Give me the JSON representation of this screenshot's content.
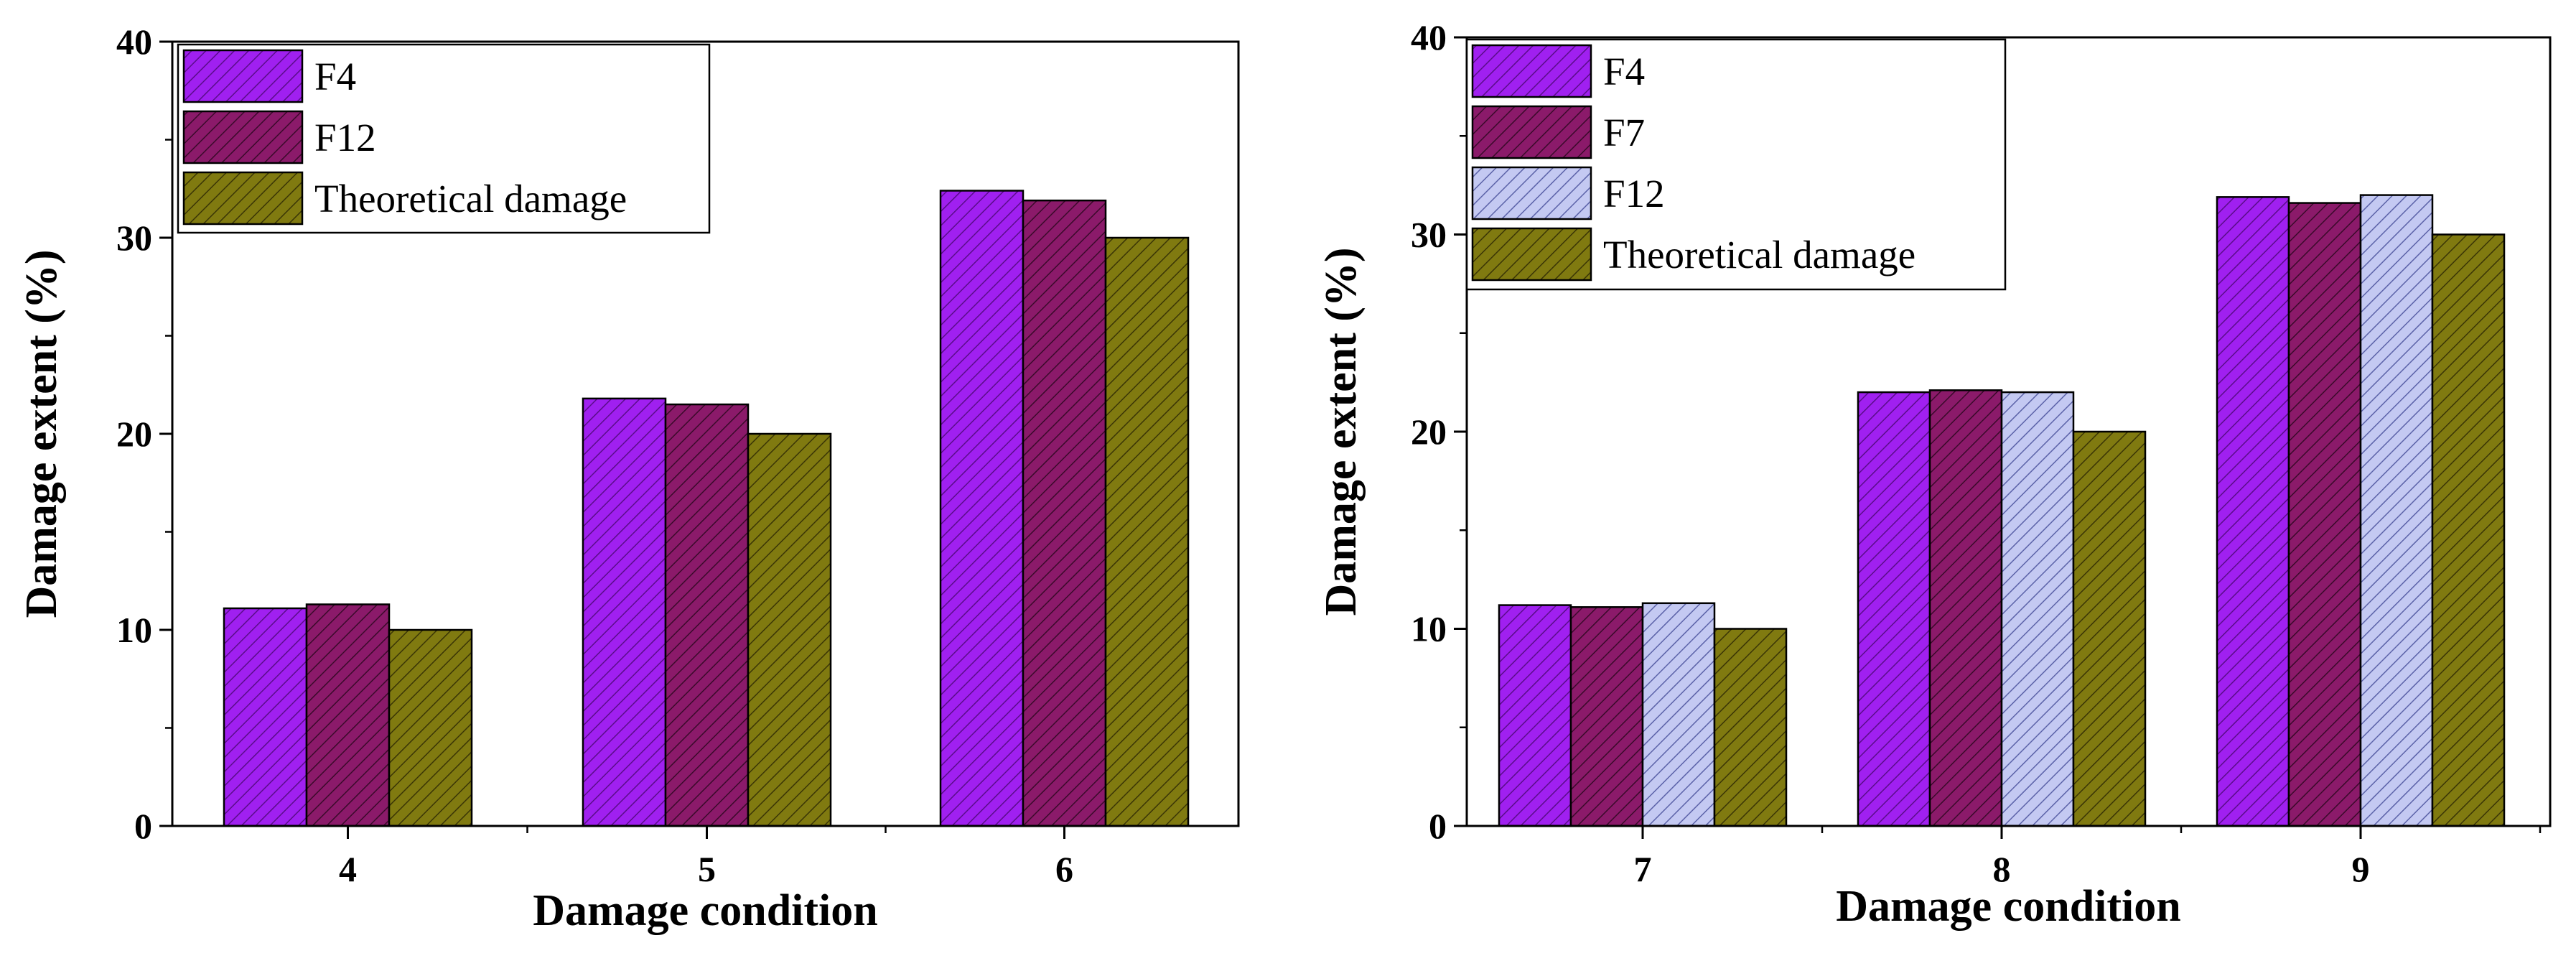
{
  "chart_data": [
    {
      "type": "bar",
      "categories": [
        "4",
        "5",
        "6"
      ],
      "series": [
        {
          "name": "F4",
          "values": [
            11.1,
            21.8,
            32.4
          ],
          "color": "#a020f0",
          "hatch": "#5a0c8a"
        },
        {
          "name": "F12",
          "values": [
            11.3,
            21.5,
            31.9
          ],
          "color": "#8b1a6a",
          "hatch": "#3a0a2a"
        },
        {
          "name": "Theoretical damage",
          "values": [
            10,
            20,
            30
          ],
          "color": "#807a10",
          "hatch": "#3a3506"
        }
      ],
      "title": "",
      "xlabel": "Damage condition",
      "ylabel": "Damage extent (%)",
      "ylim": [
        0,
        40
      ],
      "yticks": [
        0,
        10,
        20,
        30,
        40
      ],
      "legend": "top-left"
    },
    {
      "type": "bar",
      "categories": [
        "7",
        "8",
        "9"
      ],
      "series": [
        {
          "name": "F4",
          "values": [
            11.2,
            22.0,
            31.9
          ],
          "color": "#a020f0",
          "hatch": "#5a0c8a"
        },
        {
          "name": "F7",
          "values": [
            11.1,
            22.1,
            31.6
          ],
          "color": "#8b1a6a",
          "hatch": "#3a0a2a"
        },
        {
          "name": "F12",
          "values": [
            11.3,
            22.0,
            32.0
          ],
          "color": "#c4c9f2",
          "hatch": "#5b62a8"
        },
        {
          "name": "Theoretical damage",
          "values": [
            10,
            20,
            30
          ],
          "color": "#807a10",
          "hatch": "#3a3506"
        }
      ],
      "title": "",
      "xlabel": "Damage condition",
      "ylabel": "Damage extent (%)",
      "ylim": [
        0,
        40
      ],
      "yticks": [
        0,
        10,
        20,
        30,
        40
      ],
      "legend": "top-left"
    }
  ]
}
